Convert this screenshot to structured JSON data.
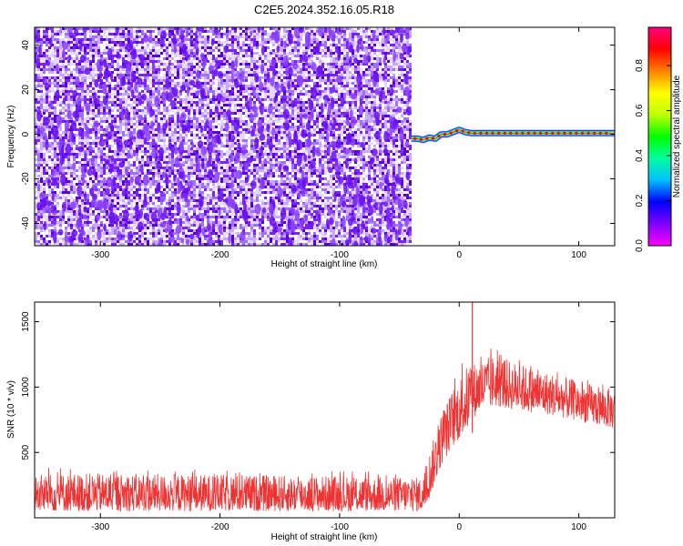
{
  "title": "C2E5.2024.352.16.05.R18",
  "chart_data": [
    {
      "type": "heatmap",
      "xlabel": "Height of straight line (km)",
      "ylabel": "Frequency (Hz)",
      "xlim": [
        -355,
        130
      ],
      "ylim": [
        -50,
        48
      ],
      "xticks": [
        -300,
        -200,
        -100,
        0,
        100
      ],
      "yticks": [
        -40,
        -20,
        0,
        20,
        40
      ],
      "noise_region_x": [
        -355,
        -40
      ],
      "signal_ridge": {
        "x": [
          -40,
          -35,
          -30,
          -25,
          -20,
          -15,
          -10,
          -5,
          0,
          5,
          10,
          20,
          40,
          60,
          80,
          100,
          130
        ],
        "y": [
          -2,
          -2,
          -2.5,
          -1.5,
          -2,
          0,
          0,
          1,
          2,
          1,
          0.5,
          0.5,
          0.5,
          0.5,
          0.5,
          0.5,
          0.5
        ]
      },
      "colorbar": {
        "label": "Normalized spectral amplitude",
        "ticks": [
          0.0,
          0.2,
          0.4,
          0.6,
          0.8
        ],
        "tick_labels": [
          "0.0",
          "0.2",
          "0.4",
          "0.6",
          "0.8"
        ],
        "range": [
          0,
          0.97
        ]
      },
      "grid": false
    },
    {
      "type": "line",
      "xlabel": "Height of straight line (km)",
      "ylabel": "SNR (10 * v/v)",
      "xlim": [
        -355,
        130
      ],
      "ylim": [
        0,
        1650
      ],
      "xticks": [
        -300,
        -200,
        -100,
        0,
        100
      ],
      "yticks": [
        500,
        1000,
        1500
      ],
      "series": [
        {
          "color": "#ee3333",
          "envelope": {
            "x": [
              -355,
              -300,
              -200,
              -100,
              -30,
              -25,
              -15,
              -5,
              5,
              15,
              30,
              50,
              80,
              110,
              130
            ],
            "low": [
              50,
              50,
              50,
              50,
              50,
              150,
              400,
              550,
              650,
              800,
              850,
              820,
              780,
              720,
              680
            ],
            "high": [
              340,
              340,
              330,
              320,
              310,
              500,
              800,
              1000,
              1150,
              1200,
              1250,
              1180,
              1100,
              1020,
              980
            ]
          },
          "spike": {
            "x": 11,
            "y": 1650
          }
        }
      ],
      "grid": false
    }
  ],
  "colors": {
    "line": "#ee3333",
    "noise": [
      "#ffffff",
      "#e6d9ff",
      "#c9a8ff",
      "#a070ff",
      "#7b22ff",
      "#5a00d8"
    ],
    "colormap": [
      "#ff00ff",
      "#8000ff",
      "#0000ff",
      "#00c0ff",
      "#00ffa0",
      "#00ff00",
      "#c0ff00",
      "#ffff00",
      "#ff8000",
      "#ff0000",
      "#ff0080"
    ]
  }
}
